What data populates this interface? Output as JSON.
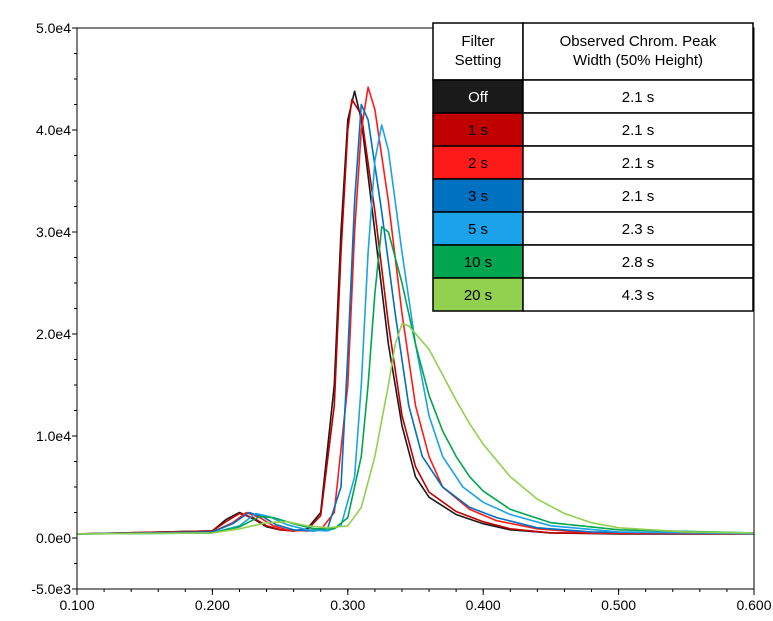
{
  "chart_data": {
    "type": "line",
    "title": "",
    "xlabel": "",
    "ylabel": "",
    "xlim": [
      0.1,
      0.6
    ],
    "ylim": [
      -5000,
      50000
    ],
    "x_ticks": [
      {
        "value": 0.1,
        "label": "0.100"
      },
      {
        "value": 0.2,
        "label": "0.200"
      },
      {
        "value": 0.3,
        "label": "0.300"
      },
      {
        "value": 0.4,
        "label": "0.400"
      },
      {
        "value": 0.5,
        "label": "0.500"
      },
      {
        "value": 0.6,
        "label": "0.600"
      }
    ],
    "y_ticks": [
      {
        "value": 50000,
        "label": "5.0e4"
      },
      {
        "value": 40000,
        "label": "4.0e4"
      },
      {
        "value": 30000,
        "label": "3.0e4"
      },
      {
        "value": 20000,
        "label": "2.0e4"
      },
      {
        "value": 10000,
        "label": "1.0e4"
      },
      {
        "value": 0,
        "label": "0.0e0"
      },
      {
        "value": -5000,
        "label": "-5.0e3"
      }
    ],
    "grid": false,
    "legend": "table, top-right",
    "series": [
      {
        "name": "Off",
        "color": "#1a1a1a",
        "points": [
          [
            0.1,
            400
          ],
          [
            0.2,
            700
          ],
          [
            0.21,
            1800
          ],
          [
            0.22,
            2500
          ],
          [
            0.23,
            1900
          ],
          [
            0.24,
            1100
          ],
          [
            0.25,
            800
          ],
          [
            0.26,
            700
          ],
          [
            0.27,
            900
          ],
          [
            0.28,
            2500
          ],
          [
            0.29,
            15000
          ],
          [
            0.295,
            30000
          ],
          [
            0.3,
            41000
          ],
          [
            0.305,
            43800
          ],
          [
            0.31,
            41000
          ],
          [
            0.32,
            30000
          ],
          [
            0.33,
            19000
          ],
          [
            0.34,
            11000
          ],
          [
            0.35,
            6000
          ],
          [
            0.36,
            4000
          ],
          [
            0.38,
            2300
          ],
          [
            0.4,
            1400
          ],
          [
            0.42,
            800
          ],
          [
            0.45,
            500
          ],
          [
            0.5,
            400
          ],
          [
            0.6,
            400
          ]
        ]
      },
      {
        "name": "1 s",
        "color": "#c00000",
        "points": [
          [
            0.1,
            400
          ],
          [
            0.2,
            700
          ],
          [
            0.21,
            1600
          ],
          [
            0.22,
            2400
          ],
          [
            0.23,
            2000
          ],
          [
            0.24,
            1200
          ],
          [
            0.25,
            800
          ],
          [
            0.26,
            700
          ],
          [
            0.27,
            800
          ],
          [
            0.28,
            2200
          ],
          [
            0.29,
            13000
          ],
          [
            0.295,
            28000
          ],
          [
            0.3,
            40000
          ],
          [
            0.303,
            43000
          ],
          [
            0.31,
            41500
          ],
          [
            0.32,
            32000
          ],
          [
            0.33,
            21000
          ],
          [
            0.34,
            12000
          ],
          [
            0.35,
            7000
          ],
          [
            0.36,
            4500
          ],
          [
            0.38,
            2600
          ],
          [
            0.4,
            1600
          ],
          [
            0.42,
            900
          ],
          [
            0.45,
            500
          ],
          [
            0.5,
            450
          ],
          [
            0.6,
            450
          ]
        ]
      },
      {
        "name": "2 s",
        "color": "#ff1a1a",
        "points": [
          [
            0.1,
            400
          ],
          [
            0.2,
            600
          ],
          [
            0.215,
            1500
          ],
          [
            0.225,
            2500
          ],
          [
            0.235,
            2000
          ],
          [
            0.245,
            1200
          ],
          [
            0.255,
            800
          ],
          [
            0.27,
            700
          ],
          [
            0.28,
            800
          ],
          [
            0.29,
            2500
          ],
          [
            0.3,
            15000
          ],
          [
            0.305,
            30000
          ],
          [
            0.31,
            40000
          ],
          [
            0.315,
            44200
          ],
          [
            0.32,
            42000
          ],
          [
            0.33,
            33000
          ],
          [
            0.34,
            22000
          ],
          [
            0.35,
            13000
          ],
          [
            0.36,
            8000
          ],
          [
            0.37,
            5000
          ],
          [
            0.39,
            2800
          ],
          [
            0.41,
            1700
          ],
          [
            0.44,
            900
          ],
          [
            0.48,
            500
          ],
          [
            0.6,
            450
          ]
        ]
      },
      {
        "name": "3 s",
        "color": "#0070c0",
        "points": [
          [
            0.1,
            400
          ],
          [
            0.2,
            600
          ],
          [
            0.215,
            1400
          ],
          [
            0.227,
            2500
          ],
          [
            0.237,
            2100
          ],
          [
            0.247,
            1300
          ],
          [
            0.26,
            800
          ],
          [
            0.275,
            700
          ],
          [
            0.285,
            900
          ],
          [
            0.295,
            5000
          ],
          [
            0.3,
            18000
          ],
          [
            0.305,
            33000
          ],
          [
            0.31,
            42500
          ],
          [
            0.315,
            41000
          ],
          [
            0.325,
            32000
          ],
          [
            0.335,
            22000
          ],
          [
            0.345,
            13000
          ],
          [
            0.355,
            8000
          ],
          [
            0.37,
            5000
          ],
          [
            0.39,
            3000
          ],
          [
            0.41,
            2000
          ],
          [
            0.44,
            1000
          ],
          [
            0.48,
            600
          ],
          [
            0.6,
            450
          ]
        ]
      },
      {
        "name": "5 s",
        "color": "#1aa3e8",
        "points": [
          [
            0.1,
            400
          ],
          [
            0.2,
            500
          ],
          [
            0.22,
            1200
          ],
          [
            0.232,
            2400
          ],
          [
            0.242,
            2100
          ],
          [
            0.255,
            1300
          ],
          [
            0.27,
            800
          ],
          [
            0.285,
            700
          ],
          [
            0.295,
            1200
          ],
          [
            0.305,
            6000
          ],
          [
            0.31,
            15000
          ],
          [
            0.315,
            28000
          ],
          [
            0.32,
            37000
          ],
          [
            0.325,
            40500
          ],
          [
            0.33,
            38000
          ],
          [
            0.34,
            28000
          ],
          [
            0.35,
            19000
          ],
          [
            0.36,
            12000
          ],
          [
            0.37,
            8000
          ],
          [
            0.385,
            5000
          ],
          [
            0.4,
            3500
          ],
          [
            0.42,
            2300
          ],
          [
            0.45,
            1200
          ],
          [
            0.5,
            600
          ],
          [
            0.6,
            450
          ]
        ]
      },
      {
        "name": "10 s",
        "color": "#00a550",
        "points": [
          [
            0.1,
            400
          ],
          [
            0.2,
            500
          ],
          [
            0.22,
            1100
          ],
          [
            0.235,
            2100
          ],
          [
            0.245,
            2000
          ],
          [
            0.26,
            1400
          ],
          [
            0.275,
            900
          ],
          [
            0.29,
            900
          ],
          [
            0.3,
            2000
          ],
          [
            0.31,
            8000
          ],
          [
            0.315,
            15000
          ],
          [
            0.32,
            24000
          ],
          [
            0.325,
            30500
          ],
          [
            0.33,
            30000
          ],
          [
            0.34,
            25000
          ],
          [
            0.35,
            19000
          ],
          [
            0.36,
            14000
          ],
          [
            0.37,
            10500
          ],
          [
            0.38,
            8000
          ],
          [
            0.39,
            6000
          ],
          [
            0.4,
            4600
          ],
          [
            0.42,
            2800
          ],
          [
            0.45,
            1500
          ],
          [
            0.5,
            800
          ],
          [
            0.6,
            500
          ]
        ]
      },
      {
        "name": "20 s",
        "color": "#92d050",
        "points": [
          [
            0.1,
            400
          ],
          [
            0.2,
            500
          ],
          [
            0.22,
            900
          ],
          [
            0.24,
            1500
          ],
          [
            0.255,
            1600
          ],
          [
            0.27,
            1200
          ],
          [
            0.285,
            1000
          ],
          [
            0.3,
            1200
          ],
          [
            0.31,
            3000
          ],
          [
            0.32,
            8000
          ],
          [
            0.33,
            15000
          ],
          [
            0.335,
            19000
          ],
          [
            0.34,
            21000
          ],
          [
            0.345,
            20800
          ],
          [
            0.36,
            18500
          ],
          [
            0.37,
            16000
          ],
          [
            0.38,
            13500
          ],
          [
            0.39,
            11200
          ],
          [
            0.4,
            9200
          ],
          [
            0.42,
            6000
          ],
          [
            0.44,
            3800
          ],
          [
            0.46,
            2400
          ],
          [
            0.48,
            1500
          ],
          [
            0.5,
            1000
          ],
          [
            0.55,
            600
          ],
          [
            0.6,
            500
          ]
        ]
      }
    ]
  },
  "legend_table": {
    "header_setting": "Filter Setting",
    "header_setting_lines": [
      "Filter",
      "Setting"
    ],
    "header_width": "Observed Chrom. Peak Width (50% Height)",
    "header_width_lines": [
      "Observed Chrom. Peak",
      "Width (50% Height)"
    ],
    "rows": [
      {
        "setting": "Off",
        "width": "2.1 s",
        "color": "#1a1a1a",
        "text_color": "#ffffff"
      },
      {
        "setting": "1 s",
        "width": "2.1 s",
        "color": "#c00000",
        "text_color": "#000000"
      },
      {
        "setting": "2 s",
        "width": "2.1 s",
        "color": "#ff1a1a",
        "text_color": "#000000"
      },
      {
        "setting": "3 s",
        "width": "2.1 s",
        "color": "#0070c0",
        "text_color": "#000000"
      },
      {
        "setting": "5 s",
        "width": "2.3 s",
        "color": "#1aa3e8",
        "text_color": "#000000"
      },
      {
        "setting": "10 s",
        "width": "2.8 s",
        "color": "#00a550",
        "text_color": "#000000"
      },
      {
        "setting": "20 s",
        "width": "4.3 s",
        "color": "#92d050",
        "text_color": "#000000"
      }
    ]
  }
}
